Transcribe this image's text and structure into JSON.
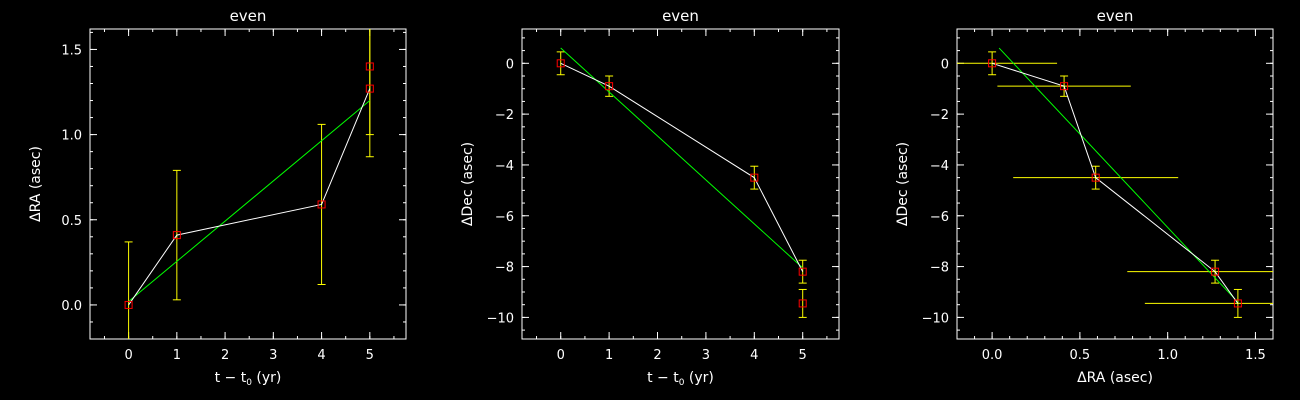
{
  "colors": {
    "background": "#000000",
    "axes": "#ffffff",
    "data_line": "#ffffff",
    "fit_line": "#00ff00",
    "error_bars": "#ffff00",
    "markers": "#ff0000"
  },
  "chart_data": [
    {
      "type": "scatter",
      "title": "even",
      "xlabel": "t − t",
      "xlabel_sub": "0",
      "xlabel_suffix": " (yr)",
      "ylabel": "ΔRA (asec)",
      "xlim": [
        -0.8,
        5.75
      ],
      "ylim": [
        -0.2,
        1.62
      ],
      "xticks": [
        0,
        1,
        2,
        3,
        4,
        5
      ],
      "yticks": [
        0.0,
        0.5,
        1.0,
        1.5
      ],
      "xtick_labels": [
        "0",
        "1",
        "2",
        "3",
        "4",
        "5"
      ],
      "ytick_labels": [
        "0.0",
        "0.5",
        "1.0",
        "1.5"
      ],
      "x_minor_step": 0.5,
      "y_minor_step": 0.1,
      "points": [
        {
          "x": 0,
          "y": 0.0,
          "yerr": 0.37
        },
        {
          "x": 1,
          "y": 0.41,
          "yerr": 0.38
        },
        {
          "x": 4,
          "y": 0.59,
          "yerr": 0.47
        },
        {
          "x": 5,
          "y": 1.27,
          "yerr": 0.4
        },
        {
          "x": 5,
          "y": 1.4,
          "yerr": 0.4
        }
      ],
      "connect_line": [
        [
          0,
          0.0
        ],
        [
          1,
          0.41
        ],
        [
          4,
          0.59
        ],
        [
          5,
          1.27
        ]
      ],
      "fit_line": [
        [
          0,
          0.02
        ],
        [
          5,
          1.2
        ]
      ]
    },
    {
      "type": "scatter",
      "title": "even",
      "xlabel": "t − t",
      "xlabel_sub": "0",
      "xlabel_suffix": " (yr)",
      "ylabel": "ΔDec (asec)",
      "xlim": [
        -0.8,
        5.75
      ],
      "ylim": [
        -10.85,
        1.35
      ],
      "xticks": [
        0,
        1,
        2,
        3,
        4,
        5
      ],
      "yticks": [
        -10,
        -8,
        -6,
        -4,
        -2,
        0
      ],
      "xtick_labels": [
        "0",
        "1",
        "2",
        "3",
        "4",
        "5"
      ],
      "ytick_labels": [
        "−10",
        "−8",
        "−6",
        "−4",
        "−2",
        "0"
      ],
      "x_minor_step": 0.5,
      "y_minor_step": 0.5,
      "points": [
        {
          "x": 0,
          "y": 0.0,
          "yerr": 0.45
        },
        {
          "x": 1,
          "y": -0.9,
          "yerr": 0.4
        },
        {
          "x": 4,
          "y": -4.5,
          "yerr": 0.45
        },
        {
          "x": 5,
          "y": -8.2,
          "yerr": 0.45
        },
        {
          "x": 5,
          "y": -9.45,
          "yerr": 0.55
        }
      ],
      "connect_line": [
        [
          0,
          0.0
        ],
        [
          1,
          -0.9
        ],
        [
          4,
          -4.5
        ],
        [
          5,
          -8.2
        ]
      ],
      "fit_line": [
        [
          0,
          0.6
        ],
        [
          5,
          -8.05
        ]
      ]
    },
    {
      "type": "scatter",
      "title": "even",
      "xlabel": "ΔRA (asec)",
      "xlabel_sub": "",
      "xlabel_suffix": "",
      "ylabel": "ΔDec (asec)",
      "xlim": [
        -0.2,
        1.6
      ],
      "ylim": [
        -10.85,
        1.35
      ],
      "xticks": [
        0.0,
        0.5,
        1.0,
        1.5
      ],
      "yticks": [
        -10,
        -8,
        -6,
        -4,
        -2,
        0
      ],
      "xtick_labels": [
        "0.0",
        "0.5",
        "1.0",
        "1.5"
      ],
      "ytick_labels": [
        "−10",
        "−8",
        "−6",
        "−4",
        "−2",
        "0"
      ],
      "x_minor_step": 0.1,
      "y_minor_step": 0.5,
      "points": [
        {
          "x": 0.0,
          "y": 0.0,
          "xerr": 0.37,
          "yerr": 0.45
        },
        {
          "x": 0.41,
          "y": -0.9,
          "xerr": 0.38,
          "yerr": 0.4
        },
        {
          "x": 0.59,
          "y": -4.5,
          "xerr": 0.47,
          "yerr": 0.45
        },
        {
          "x": 1.27,
          "y": -8.2,
          "xerr": 0.5,
          "yerr": 0.45
        },
        {
          "x": 1.4,
          "y": -9.45,
          "xerr": 0.53,
          "yerr": 0.55
        }
      ],
      "connect_line": [
        [
          0.0,
          0.0
        ],
        [
          0.41,
          -0.9
        ],
        [
          0.59,
          -4.5
        ],
        [
          1.27,
          -8.2
        ],
        [
          1.4,
          -9.45
        ]
      ],
      "fit_line": [
        [
          0.04,
          0.6
        ],
        [
          1.4,
          -9.4
        ]
      ]
    }
  ]
}
